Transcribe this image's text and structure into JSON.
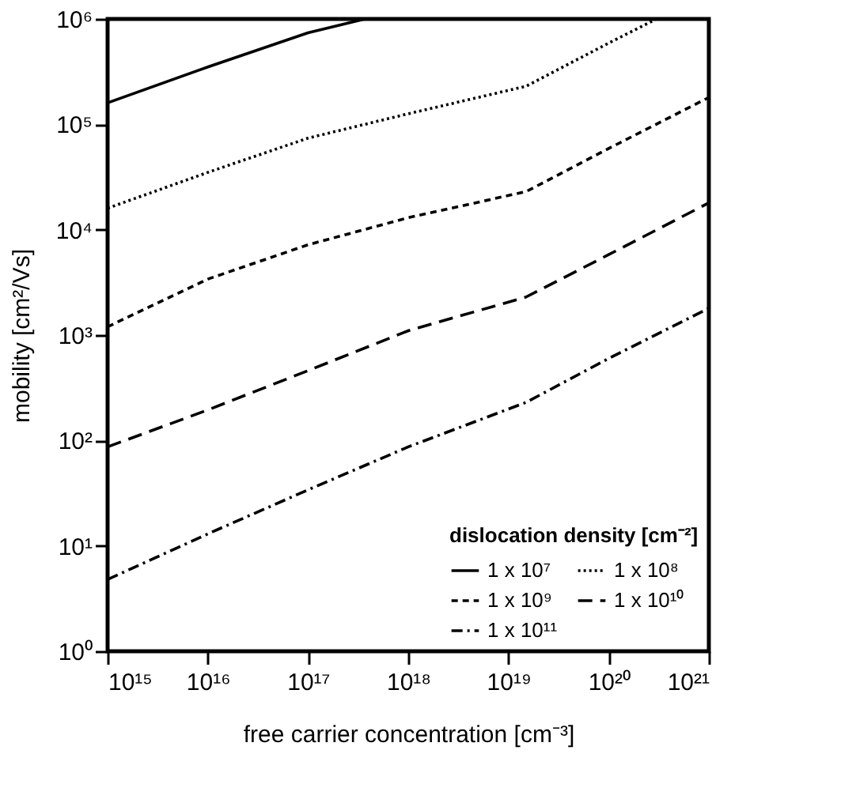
{
  "chart_data": {
    "type": "line",
    "xlabel": "free carrier concentration [cm⁻³]",
    "ylabel": "mobility [cm²/Vs]",
    "legend_title": "dislocation density [cm⁻²]",
    "log": "xy",
    "grid": false,
    "legend": "bottom right",
    "marker": "none",
    "xlim": [
      1000000000000000.0,
      1e+21
    ],
    "ylim": [
      1,
      1000000
    ],
    "xticks": [
      {
        "value": 1000000000000000.0,
        "label": "10¹⁵"
      },
      {
        "value": 1e+16,
        "label": "10¹⁶"
      },
      {
        "value": 1e+17,
        "label": "10¹⁷"
      },
      {
        "value": 1e+18,
        "label": "10¹⁸"
      },
      {
        "value": 1e+19,
        "label": "10¹⁹"
      },
      {
        "value": 1e+20,
        "label": "10²⁰"
      },
      {
        "value": 1e+21,
        "label": "10²¹"
      }
    ],
    "yticks": [
      {
        "value": 1,
        "label": "10⁰"
      },
      {
        "value": 10,
        "label": "10¹"
      },
      {
        "value": 100,
        "label": "10²"
      },
      {
        "value": 1000,
        "label": "10³"
      },
      {
        "value": 10000,
        "label": "10⁴"
      },
      {
        "value": 100000,
        "label": "10⁵"
      },
      {
        "value": 1000000,
        "label": "10⁶"
      }
    ],
    "x": [
      1000000000000000.0,
      1e+16,
      1e+17,
      1e+18,
      1.5e+19,
      1e+20,
      1e+21
    ],
    "series": [
      {
        "name": "1 x 10⁷",
        "color": "#000000",
        "line_style": "solid",
        "x": [
          1000000000000000.0,
          1e+16,
          1e+17,
          3.7e+17
        ],
        "values": [
          160000,
          350000,
          740000,
          1000000
        ]
      },
      {
        "name": "1 x 10⁸",
        "color": "#000000",
        "line_style": "dotted",
        "x": [
          1000000000000000.0,
          1e+16,
          1e+17,
          1e+18,
          1.5e+19,
          1e+20,
          3e+20
        ],
        "values": [
          16000,
          35000,
          74000,
          126000,
          230000,
          590000,
          1000000
        ]
      },
      {
        "name": "1 x 10⁹",
        "color": "#000000",
        "line_style": "dashed",
        "values": [
          1200,
          3400,
          7200,
          13000,
          23000,
          59000,
          180000
        ]
      },
      {
        "name": "1 x 10¹⁰",
        "color": "#000000",
        "line_style": "longdash",
        "values": [
          87,
          195,
          460,
          1100,
          2300,
          5800,
          18000
        ]
      },
      {
        "name": "1 x 10¹¹",
        "color": "#000000",
        "line_style": "dashdot",
        "values": [
          4.8,
          13,
          34,
          87,
          230,
          600,
          1800
        ]
      }
    ]
  }
}
